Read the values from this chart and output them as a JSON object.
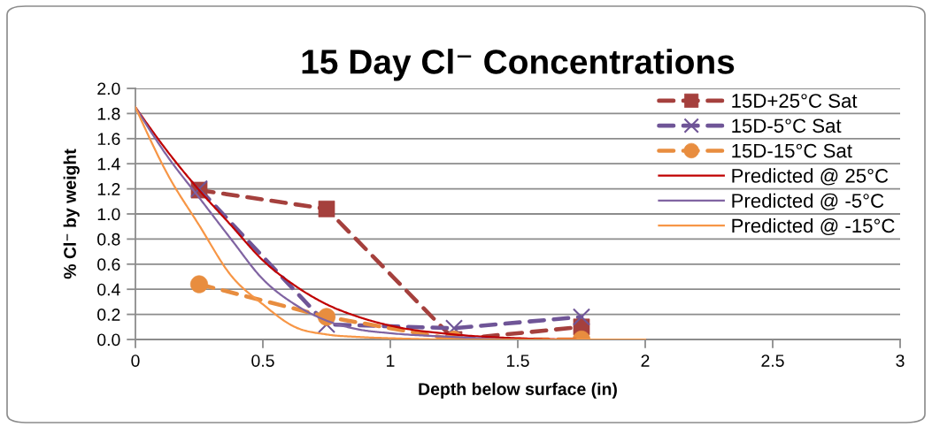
{
  "chart_data": {
    "type": "line",
    "title": "15 Day Cl⁻ Concentrations",
    "xlabel": "Depth below surface (in)",
    "ylabel": "% Cl⁻ by weight",
    "xlim": [
      0,
      3
    ],
    "xticks": [
      0,
      0.5,
      1,
      1.5,
      2,
      2.5,
      3
    ],
    "ylim": [
      0,
      2
    ],
    "yticks": [
      {
        "value": 0,
        "label": "0.0"
      },
      {
        "value": 0.2,
        "label": "0.2"
      },
      {
        "value": 0.4,
        "label": "0.4"
      },
      {
        "value": 0.6,
        "label": "0.6"
      },
      {
        "value": 0.8,
        "label": "0.8"
      },
      {
        "value": 1.0,
        "label": "1.0"
      },
      {
        "value": 1.2,
        "label": "1.2"
      },
      {
        "value": 1.4,
        "label": "1.4"
      },
      {
        "value": 1.6,
        "label": "1.6"
      },
      {
        "value": 1.8,
        "label": "1.8"
      },
      {
        "value": 2.0,
        "label": "2.0"
      }
    ],
    "grid": "y",
    "legend": "top right",
    "series": [
      {
        "name": "15D+25°C Sat",
        "color": "#a5403d",
        "x": [
          0.25,
          0.75,
          1.25,
          1.75
        ],
        "values": [
          1.19,
          1.04,
          0.0,
          0.1
        ],
        "marker": "square",
        "line_style": "dashed"
      },
      {
        "name": "15D-5°C Sat",
        "color": "#6f5597",
        "x": [
          0.25,
          0.75,
          1.25,
          1.75
        ],
        "values": [
          1.2,
          0.12,
          0.09,
          0.18
        ],
        "marker": "cross",
        "line_style": "dashed"
      },
      {
        "name": "15D-15°C Sat",
        "color": "#e88d3f",
        "x": [
          0.25,
          0.75,
          1.25,
          1.75
        ],
        "values": [
          0.44,
          0.18,
          0.0,
          0.0
        ],
        "marker": "circle",
        "line_style": "dashed"
      },
      {
        "name": "Predicted @ 25°C",
        "color": "#c00000",
        "x": [
          0,
          0.125,
          0.25,
          0.375,
          0.5,
          0.625,
          0.75,
          0.875,
          1,
          1.25,
          1.5,
          1.75,
          2
        ],
        "values": [
          1.85,
          1.5,
          1.19,
          0.91,
          0.63,
          0.43,
          0.28,
          0.18,
          0.11,
          0.04,
          0.01,
          0.0,
          0.0
        ],
        "marker": "none",
        "line_style": "solid"
      },
      {
        "name": "Predicted @ -5°C",
        "color": "#8064a2",
        "x": [
          0,
          0.125,
          0.25,
          0.375,
          0.5,
          0.625,
          0.75,
          0.875,
          1,
          1.25,
          1.5,
          1.75,
          2
        ],
        "values": [
          1.85,
          1.46,
          1.13,
          0.8,
          0.48,
          0.28,
          0.15,
          0.08,
          0.05,
          0.02,
          0.0,
          0.0,
          0.0
        ],
        "marker": "none",
        "line_style": "solid"
      },
      {
        "name": "Predicted @ -15°C",
        "color": "#f79646",
        "x": [
          0,
          0.125,
          0.25,
          0.375,
          0.5,
          0.625,
          0.75,
          0.875,
          1,
          1.25,
          1.5,
          1.75,
          2
        ],
        "values": [
          1.85,
          1.32,
          0.91,
          0.51,
          0.28,
          0.1,
          0.04,
          0.02,
          0.01,
          0.0,
          0.0,
          0.0,
          0.0
        ],
        "marker": "none",
        "line_style": "solid"
      }
    ]
  }
}
